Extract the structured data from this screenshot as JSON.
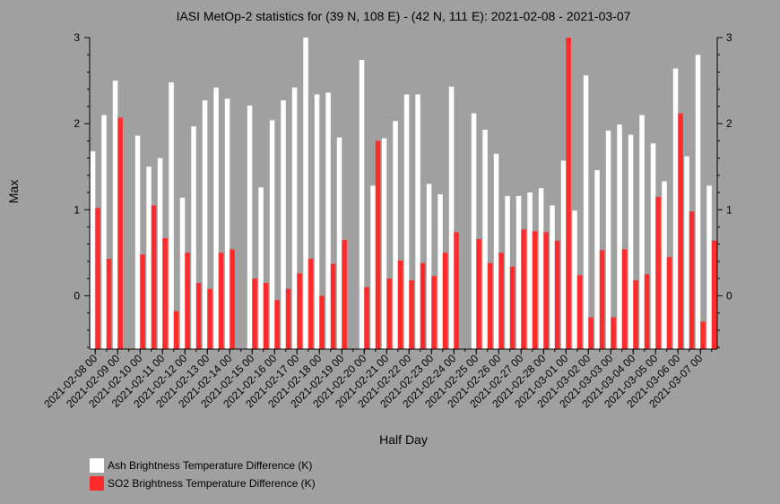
{
  "chart_data": {
    "type": "bar",
    "title": "IASI MetOp-2 statistics for (39 N, 108 E) - (42 N, 111 E): 2021-02-08 - 2021-03-07",
    "xlabel": "Half Day",
    "ylabel": "Max",
    "ylim": [
      -0.62,
      3.0
    ],
    "yticks": [
      0,
      1,
      2,
      3
    ],
    "x_tick_labels": [
      "2021-02-08 00",
      "2021-02-09 00",
      "2021-02-10 00",
      "2021-02-11 00",
      "2021-02-12 00",
      "2021-02-13 00",
      "2021-02-14 00",
      "2021-02-15 00",
      "2021-02-16 00",
      "2021-02-17 00",
      "2021-02-18 00",
      "2021-02-19 00",
      "2021-02-20 00",
      "2021-02-21 00",
      "2021-02-22 00",
      "2021-02-23 00",
      "2021-02-24 00",
      "2021-02-25 00",
      "2021-02-26 00",
      "2021-02-27 00",
      "2021-02-28 00",
      "2021-03-01 00",
      "2021-03-02 00",
      "2021-03-03 00",
      "2021-03-04 00",
      "2021-03-05 00",
      "2021-03-06 00",
      "2021-03-07 00"
    ],
    "legend_position": "bottom-left",
    "series": [
      {
        "name": "Ash Brightness Temperature Difference (K)",
        "color": "#ffffff",
        "values": [
          1.68,
          2.1,
          2.5,
          null,
          1.86,
          1.5,
          1.6,
          2.48,
          1.14,
          1.97,
          2.27,
          2.42,
          2.29,
          null,
          2.21,
          1.26,
          2.04,
          2.27,
          2.42,
          3.0,
          2.34,
          2.36,
          1.84,
          null,
          2.74,
          1.28,
          1.83,
          2.03,
          2.34,
          2.34,
          1.3,
          1.18,
          2.43,
          null,
          2.12,
          1.93,
          1.65,
          1.16,
          1.16,
          1.2,
          1.25,
          1.05,
          1.57,
          0.99,
          2.56,
          1.46,
          1.92,
          1.99,
          1.87,
          2.1,
          1.77,
          1.33,
          2.64,
          1.62,
          2.8,
          1.28
        ]
      },
      {
        "name": "SO2 Brightness Temperature Difference (K)",
        "color": "#ff2a2a",
        "values": [
          1.02,
          0.43,
          2.07,
          null,
          0.48,
          1.05,
          0.67,
          -0.18,
          0.5,
          0.15,
          0.08,
          0.5,
          0.54,
          null,
          0.2,
          0.15,
          -0.05,
          0.08,
          0.26,
          0.43,
          0.0,
          0.37,
          0.65,
          null,
          0.1,
          1.8,
          0.2,
          0.41,
          0.18,
          0.38,
          0.23,
          0.5,
          0.74,
          null,
          0.66,
          0.38,
          0.5,
          0.34,
          0.77,
          0.75,
          0.74,
          0.64,
          3.0,
          0.24,
          -0.25,
          0.53,
          -0.25,
          0.54,
          0.18,
          0.25,
          1.15,
          0.45,
          2.12,
          0.98,
          -0.3,
          0.64
        ]
      }
    ]
  }
}
